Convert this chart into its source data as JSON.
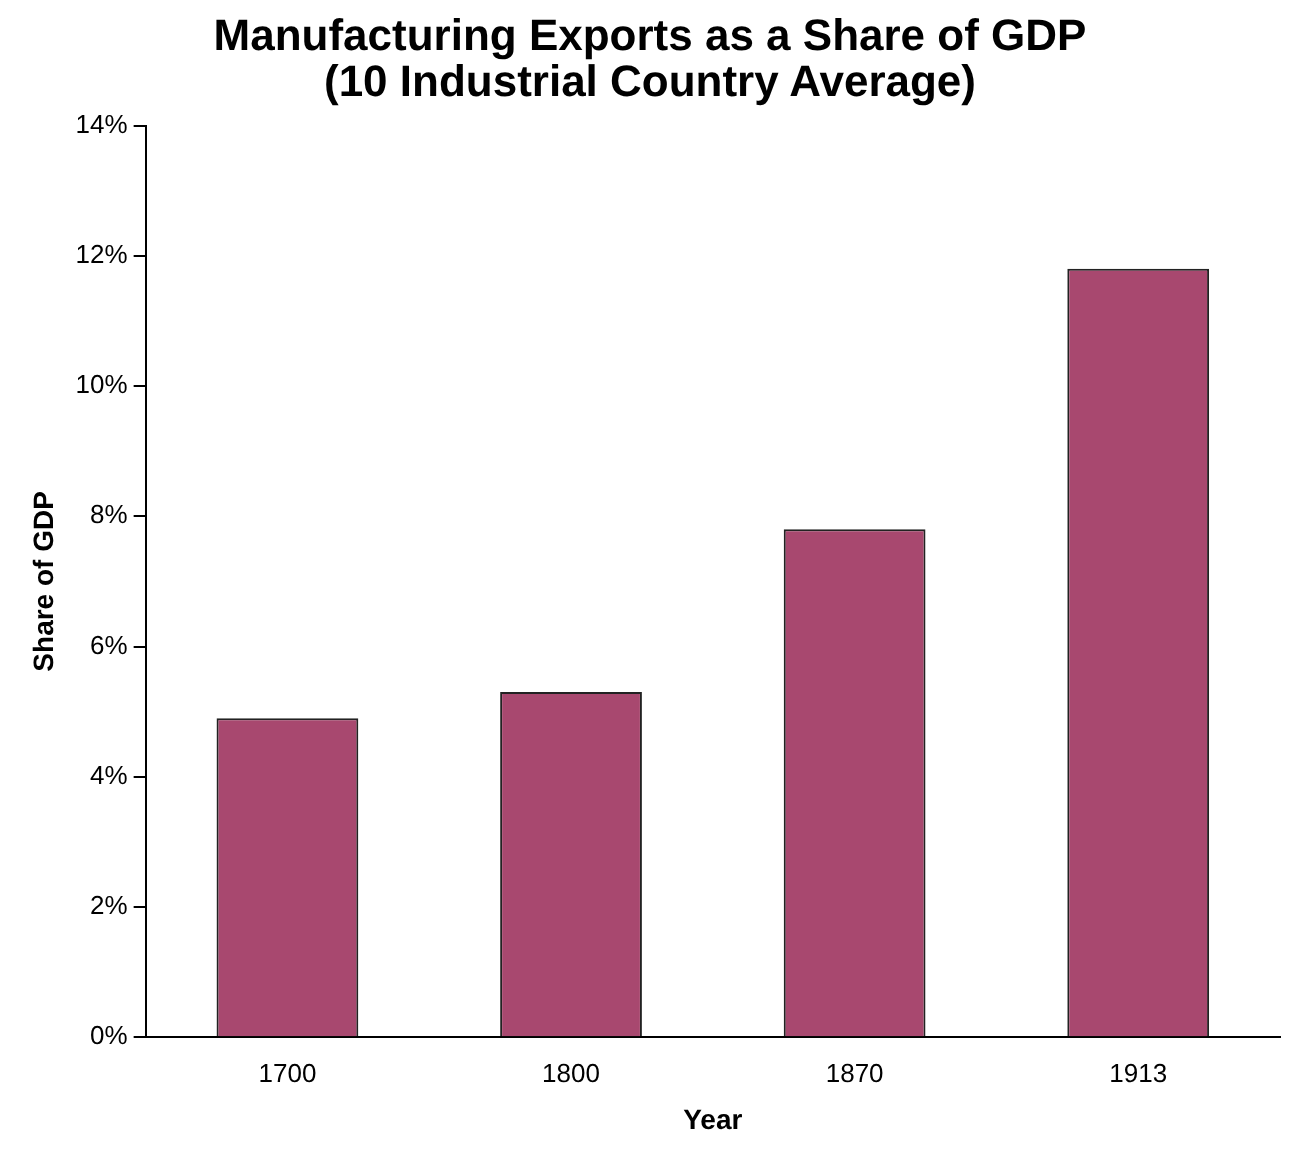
{
  "chart_data": {
    "type": "bar",
    "title": "Manufacturing Exports as a Share of GDP (10 Industrial Country Average)",
    "xlabel": "Year",
    "ylabel": "Share of GDP",
    "categories": [
      "1700",
      "1800",
      "1870",
      "1913"
    ],
    "values": [
      4.9,
      5.3,
      7.8,
      11.8
    ],
    "color": "#a8486f",
    "ylim": [
      0,
      14
    ],
    "yticks": [
      {
        "value": 0,
        "label": "0%"
      },
      {
        "value": 2,
        "label": "2%"
      },
      {
        "value": 4,
        "label": "4%"
      },
      {
        "value": 6,
        "label": "6%"
      },
      {
        "value": 8,
        "label": "8%"
      },
      {
        "value": 10,
        "label": "10%"
      },
      {
        "value": 12,
        "label": "12%"
      },
      {
        "value": 14,
        "label": "14%"
      }
    ],
    "grid": false,
    "legend": false
  }
}
